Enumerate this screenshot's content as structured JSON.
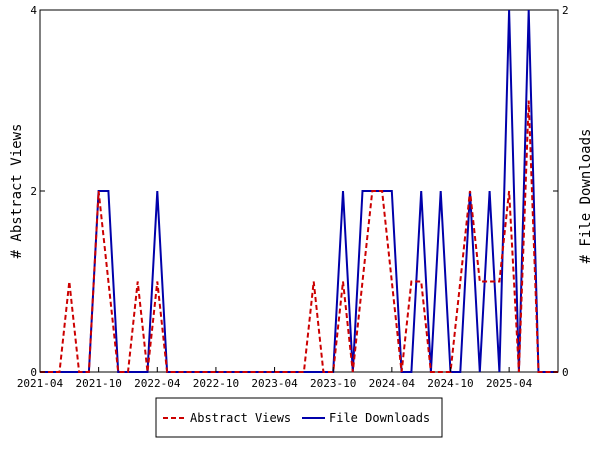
{
  "chart_data": {
    "type": "line",
    "x": [
      "2021-04",
      "2021-05",
      "2021-06",
      "2021-07",
      "2021-08",
      "2021-09",
      "2021-10",
      "2021-11",
      "2021-12",
      "2022-01",
      "2022-02",
      "2022-03",
      "2022-04",
      "2022-05",
      "2022-06",
      "2022-07",
      "2022-08",
      "2022-09",
      "2022-10",
      "2022-11",
      "2022-12",
      "2023-01",
      "2023-02",
      "2023-03",
      "2023-04",
      "2023-05",
      "2023-06",
      "2023-07",
      "2023-08",
      "2023-09",
      "2023-10",
      "2023-11",
      "2023-12",
      "2024-01",
      "2024-02",
      "2024-03",
      "2024-04",
      "2024-05",
      "2024-06",
      "2024-07",
      "2024-08",
      "2024-09",
      "2024-10",
      "2024-11",
      "2024-12",
      "2025-01",
      "2025-02",
      "2025-03",
      "2025-04",
      "2025-05",
      "2025-06",
      "2025-07",
      "2025-08",
      "2025-09"
    ],
    "x_tick_labels": [
      "2021-04",
      "2021-10",
      "2022-04",
      "2022-10",
      "2023-04",
      "2023-10",
      "2024-04",
      "2024-10",
      "2025-04"
    ],
    "series": [
      {
        "name": "Abstract Views",
        "axis": "left",
        "color": "#cc0000",
        "style": "dashed",
        "values": [
          0,
          0,
          0,
          1,
          0,
          0,
          2,
          1,
          0,
          0,
          1,
          0,
          1,
          0,
          0,
          0,
          0,
          0,
          0,
          0,
          0,
          0,
          0,
          0,
          0,
          0,
          0,
          0,
          1,
          0,
          0,
          1,
          0,
          1,
          2,
          2,
          1,
          0,
          1,
          1,
          0,
          0,
          0,
          1,
          2,
          1,
          1,
          1,
          2,
          0,
          3,
          0,
          0,
          0
        ]
      },
      {
        "name": "File Downloads",
        "axis": "right",
        "color": "#0000aa",
        "style": "solid",
        "values": [
          0,
          0,
          0,
          0,
          0,
          0,
          1,
          1,
          0,
          0,
          0,
          0,
          1,
          0,
          0,
          0,
          0,
          0,
          0,
          0,
          0,
          0,
          0,
          0,
          0,
          0,
          0,
          0,
          0,
          0,
          0,
          1,
          0,
          1,
          1,
          1,
          1,
          0,
          0,
          1,
          0,
          1,
          0,
          0,
          1,
          0,
          1,
          0,
          2,
          0,
          2,
          0,
          0,
          0
        ]
      }
    ],
    "ylabel_left": "# Abstract Views",
    "ylabel_right": "# File Downloads",
    "ylim_left": [
      0,
      4
    ],
    "ylim_right": [
      0,
      2
    ],
    "yticks_left": [
      "0",
      "2",
      "4"
    ],
    "yticks_right": [
      "0",
      "1",
      "2"
    ],
    "legend_position": "bottom",
    "grid": false
  }
}
